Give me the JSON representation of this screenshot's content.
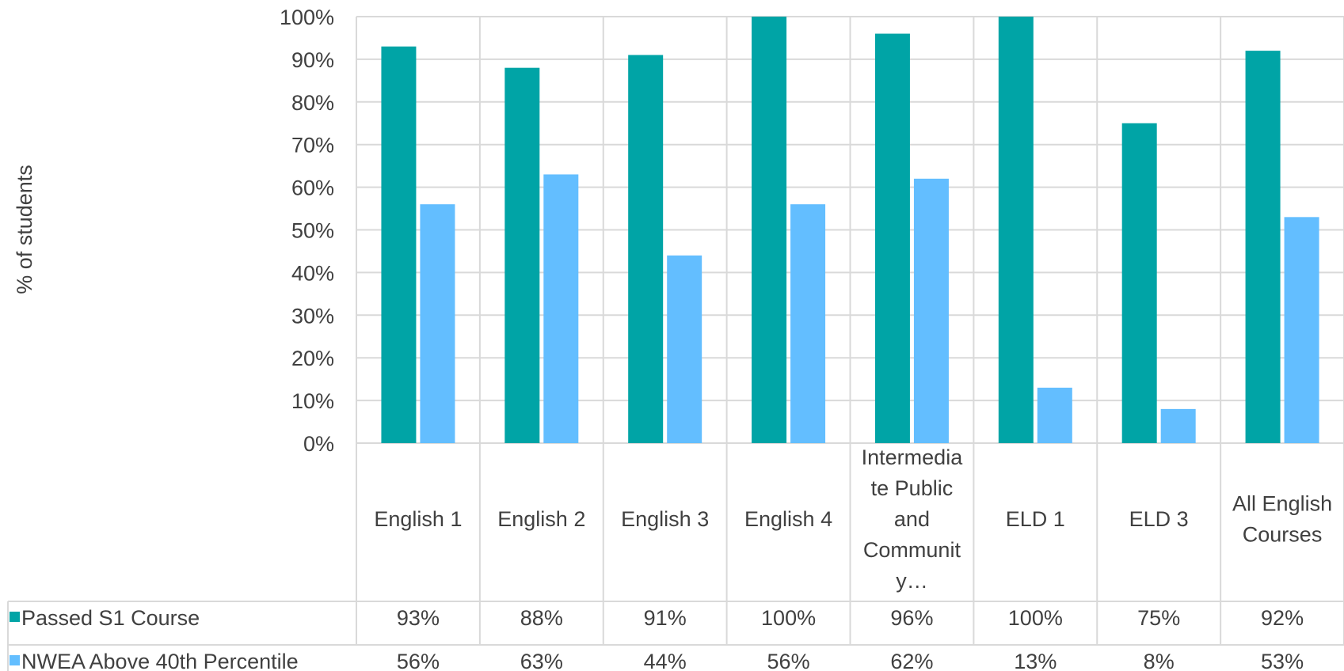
{
  "chart_data": {
    "type": "bar",
    "ylabel": "% of students",
    "ylim": [
      0,
      100
    ],
    "y_ticks": [
      "0%",
      "10%",
      "20%",
      "30%",
      "40%",
      "50%",
      "60%",
      "70%",
      "80%",
      "90%",
      "100%"
    ],
    "grid": true,
    "categories": [
      [
        "English 1"
      ],
      [
        "English 2"
      ],
      [
        "English 3"
      ],
      [
        "English 4"
      ],
      [
        "Intermedia",
        "te Public",
        "and",
        "Communit",
        "y…"
      ],
      [
        "ELD 1"
      ],
      [
        "ELD 3"
      ],
      [
        "All English",
        "Courses"
      ]
    ],
    "series": [
      {
        "name": "Passed S1 Course",
        "color": "#00A4A6",
        "values": [
          93,
          88,
          91,
          100,
          96,
          100,
          75,
          92
        ],
        "labels": [
          "93%",
          "88%",
          "91%",
          "100%",
          "96%",
          "100%",
          "75%",
          "92%"
        ]
      },
      {
        "name": "NWEA Above 40th Percentile",
        "color": "#63BEFF",
        "values": [
          56,
          63,
          44,
          56,
          62,
          13,
          8,
          53
        ],
        "labels": [
          "56%",
          "63%",
          "44%",
          "56%",
          "62%",
          "13%",
          "8%",
          "53%"
        ]
      }
    ],
    "legend": "data-table",
    "gridline_color": "#d9d9d9"
  }
}
